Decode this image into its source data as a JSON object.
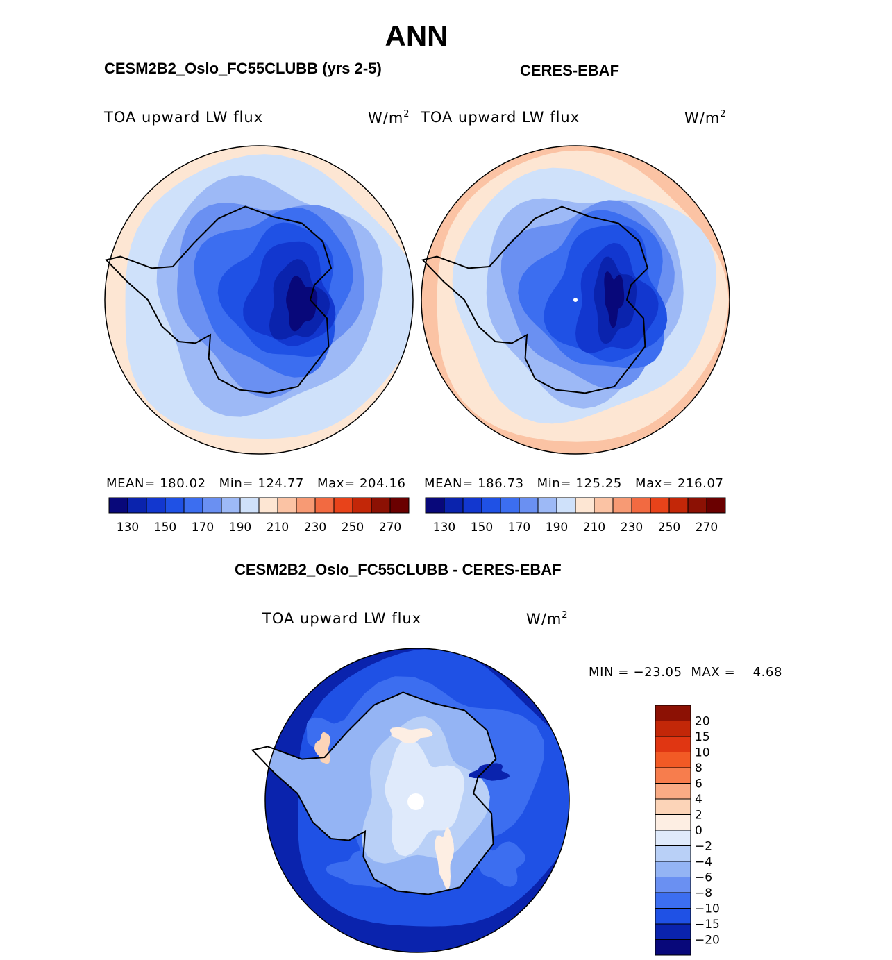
{
  "figure": {
    "title": "ANN",
    "panel1": {
      "title": "CESM2B2_Oslo_FC55CLUBB (yrs 2-5)",
      "variable": "TOA upward LW flux",
      "units_base": "W/m",
      "units_sup": "2",
      "stats": {
        "mean_label": "MEAN=",
        "mean": "180.02",
        "min_label": "Min=",
        "min": "124.77",
        "max_label": "Max=",
        "max": "204.16"
      }
    },
    "panel2": {
      "title": "CERES-EBAF",
      "variable": "TOA upward LW flux",
      "units_base": "W/m",
      "units_sup": "2",
      "stats": {
        "mean_label": "MEAN=",
        "mean": "186.73",
        "min_label": "Min=",
        "min": "125.25",
        "max_label": "Max=",
        "max": "216.07"
      }
    },
    "diff": {
      "title": "CESM2B2_Oslo_FC55CLUBB - CERES-EBAF",
      "variable": "TOA upward LW flux",
      "units_base": "W/m",
      "units_sup": "2",
      "stats": {
        "min_label": "MIN =",
        "min": "−23.05",
        "max_label": "MAX =",
        "max": "4.68"
      }
    }
  },
  "chart_data": [
    {
      "type": "heatmap",
      "projection": "south-polar-stereographic",
      "title": "CESM2B2_Oslo_FC55CLUBB (yrs 2-5)",
      "variable": "TOA upward LW flux",
      "units": "W/m2",
      "mean": 180.02,
      "min": 124.77,
      "max": 204.16,
      "levels": [
        130,
        140,
        150,
        160,
        170,
        180,
        190,
        200,
        210,
        220,
        230,
        240,
        250,
        260,
        270
      ],
      "colorbar_labels": [
        "130",
        "150",
        "170",
        "190",
        "210",
        "230",
        "250",
        "270"
      ],
      "colors": [
        "#08087a",
        "#0a23ad",
        "#1237cf",
        "#1f51e5",
        "#3c6ef0",
        "#6a90f2",
        "#9db9f6",
        "#cfe1fa",
        "#fde6d3",
        "#fbc3a4",
        "#f79a74",
        "#f26a41",
        "#e8431a",
        "#c32708",
        "#8c1104",
        "#6a0000"
      ]
    },
    {
      "type": "heatmap",
      "projection": "south-polar-stereographic",
      "title": "CERES-EBAF",
      "variable": "TOA upward LW flux",
      "units": "W/m2",
      "mean": 186.73,
      "min": 125.25,
      "max": 216.07,
      "levels": [
        130,
        140,
        150,
        160,
        170,
        180,
        190,
        200,
        210,
        220,
        230,
        240,
        250,
        260,
        270
      ],
      "colorbar_labels": [
        "130",
        "150",
        "170",
        "190",
        "210",
        "230",
        "250",
        "270"
      ],
      "colors": [
        "#08087a",
        "#0a23ad",
        "#1237cf",
        "#1f51e5",
        "#3c6ef0",
        "#6a90f2",
        "#9db9f6",
        "#cfe1fa",
        "#fde6d3",
        "#fbc3a4",
        "#f79a74",
        "#f26a41",
        "#e8431a",
        "#c32708",
        "#8c1104",
        "#6a0000"
      ]
    },
    {
      "type": "heatmap",
      "projection": "south-polar-stereographic",
      "title": "CESM2B2_Oslo_FC55CLUBB - CERES-EBAF",
      "variable": "TOA upward LW flux",
      "units": "W/m2",
      "min": -23.05,
      "max": 4.68,
      "levels": [
        20,
        15,
        10,
        8,
        6,
        4,
        2,
        0,
        -2,
        -4,
        -6,
        -8,
        -10,
        -15,
        -20
      ],
      "colorbar_labels": [
        "20",
        "15",
        "10",
        "8",
        "6",
        "4",
        "2",
        "0",
        "−2",
        "−4",
        "−6",
        "−8",
        "−10",
        "−15",
        "−20"
      ],
      "colors": [
        "#8c1104",
        "#c32708",
        "#e03612",
        "#f25a25",
        "#f77d4d",
        "#f9ab85",
        "#fcd4b8",
        "#fdeee3",
        "#dfeafb",
        "#b9d0f7",
        "#94b4f4",
        "#6a90f2",
        "#3c6ef0",
        "#1f51e5",
        "#0a23ad",
        "#08087a"
      ]
    }
  ]
}
